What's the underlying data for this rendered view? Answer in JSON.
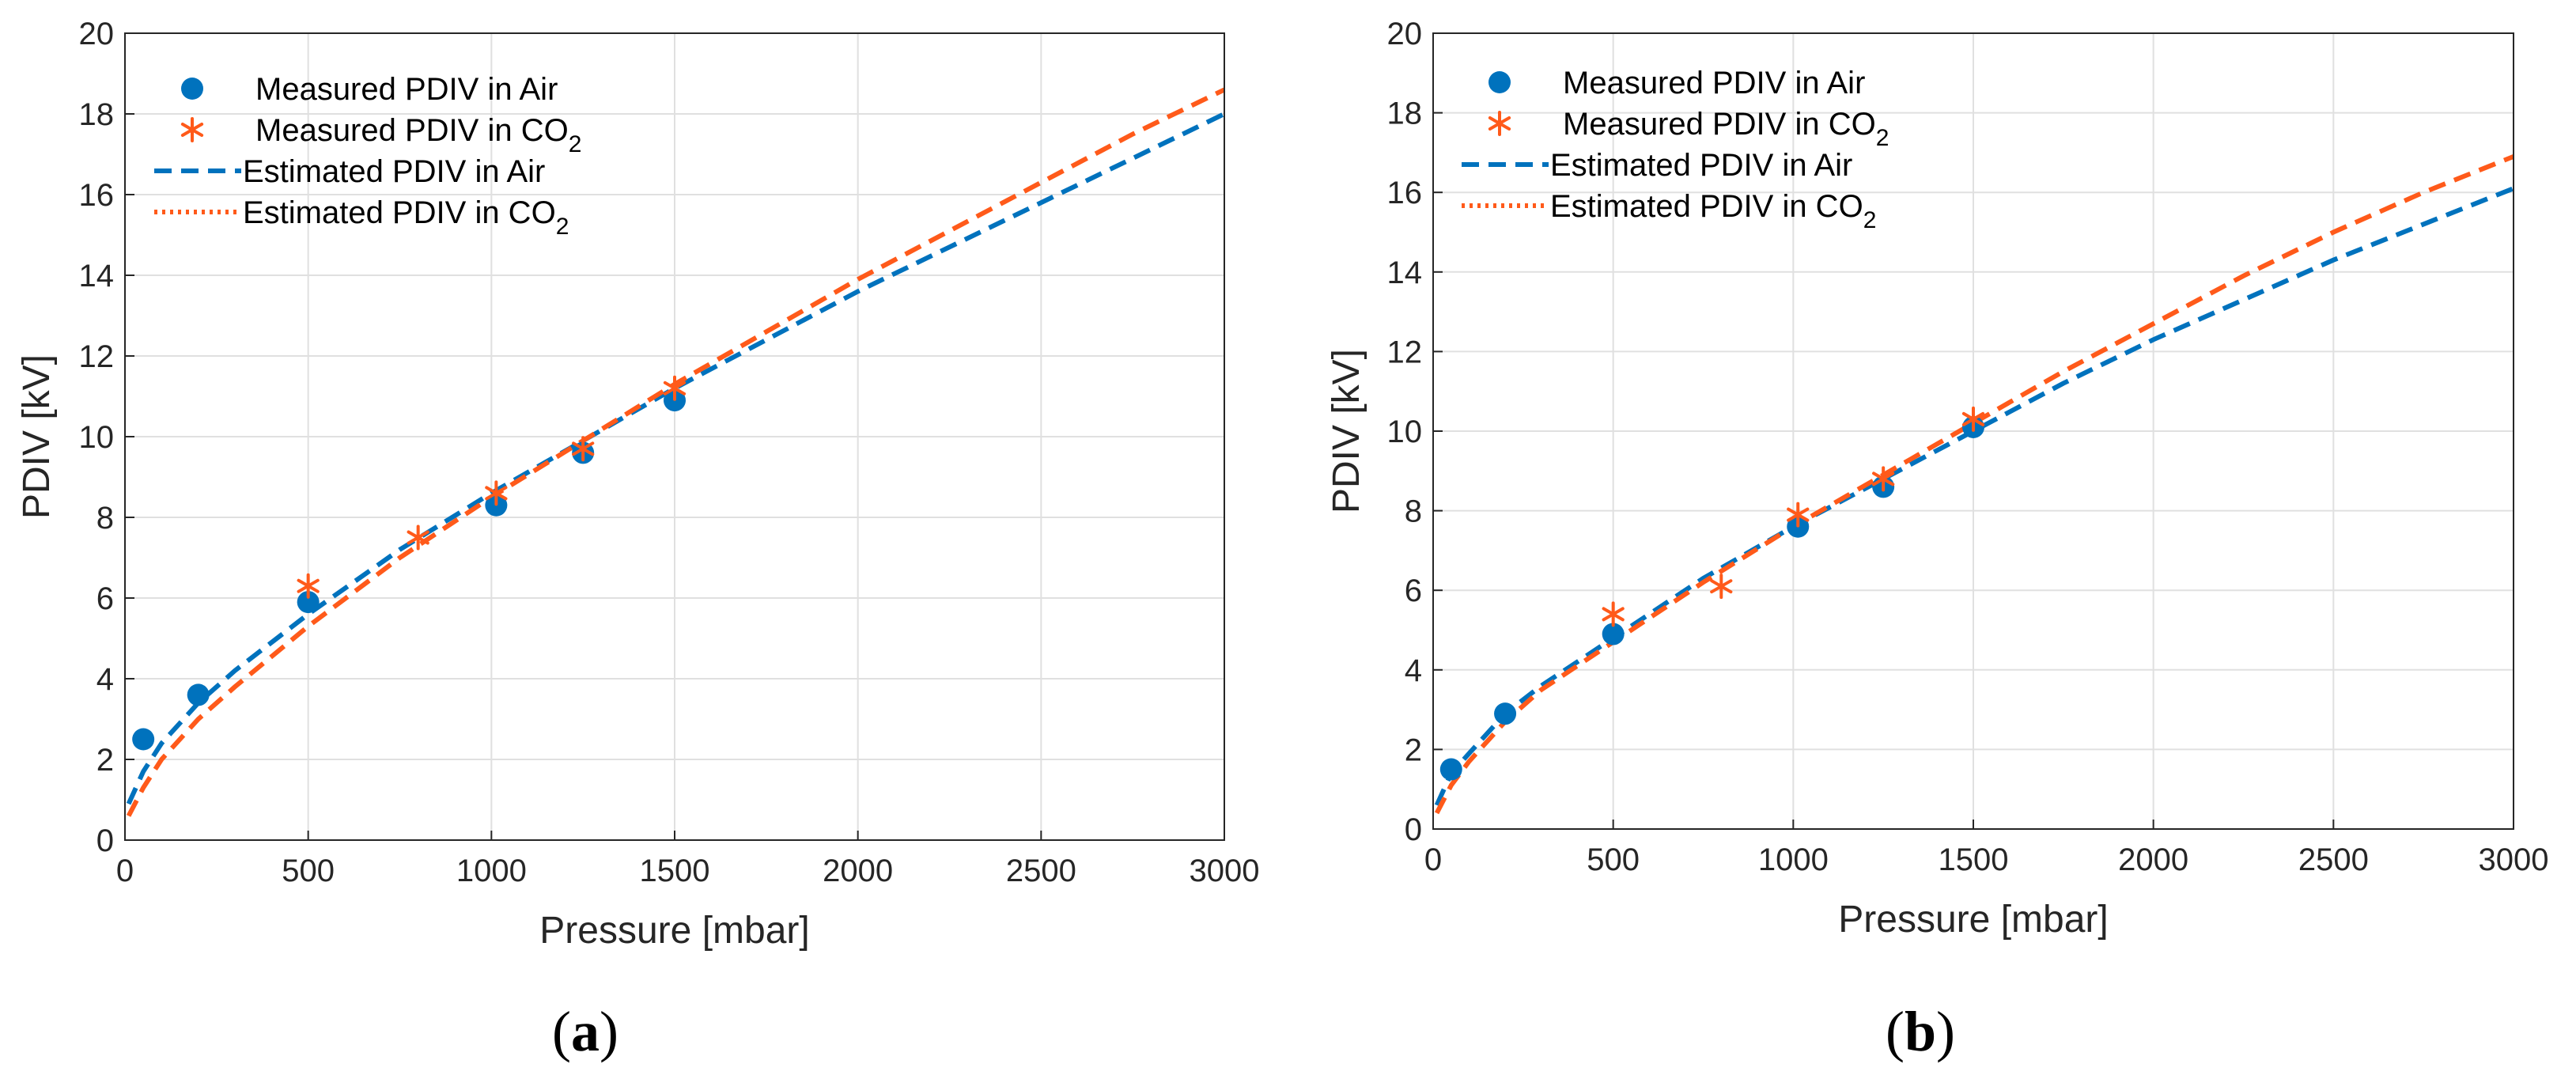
{
  "colors": {
    "air": "#0072BD",
    "co2": "#FF5A1A",
    "grid": "#e0e0e0",
    "axis": "#262626"
  },
  "captions": [
    {
      "open": "(",
      "letter": "a",
      "close": ")"
    },
    {
      "open": "(",
      "letter": "b",
      "close": ")"
    }
  ],
  "chart_data": [
    {
      "type": "scatter",
      "panel": "a",
      "xlabel": "Pressure [mbar]",
      "ylabel": "PDIV [kV]",
      "xlim": [
        0,
        3000
      ],
      "ylim": [
        0,
        20
      ],
      "xticks": [
        0,
        500,
        1000,
        1500,
        2000,
        2500,
        3000
      ],
      "yticks": [
        0,
        2,
        4,
        6,
        8,
        10,
        12,
        14,
        16,
        18,
        20
      ],
      "grid": true,
      "legend_position": "top-left",
      "legend": [
        {
          "base": "Measured PDIV in Air",
          "sub": ""
        },
        {
          "base": "Measured PDIV in CO",
          "sub": "2"
        },
        {
          "base": "Estimated PDIV in Air",
          "sub": ""
        },
        {
          "base": "Estimated PDIV in CO",
          "sub": "2"
        }
      ],
      "series": [
        {
          "name": "Measured PDIV in Air",
          "kind": "markers",
          "marker": "circle",
          "x": [
            50,
            200,
            500,
            1013,
            1250,
            1500
          ],
          "y": [
            2.5,
            3.6,
            5.9,
            8.3,
            9.6,
            10.9
          ]
        },
        {
          "name": "Measured PDIV in CO2",
          "kind": "markers",
          "marker": "asterisk",
          "x": [
            500,
            800,
            1013,
            1250,
            1500
          ],
          "y": [
            6.3,
            7.5,
            8.6,
            9.7,
            11.2
          ]
        },
        {
          "name": "Estimated PDIV in Air",
          "kind": "curve",
          "dash": "dashed",
          "x": [
            10,
            50,
            100,
            200,
            300,
            500,
            750,
            1000,
            1250,
            1500,
            1750,
            2000,
            2250,
            2500,
            2750,
            3000
          ],
          "y": [
            0.9,
            1.7,
            2.4,
            3.4,
            4.2,
            5.6,
            7.2,
            8.6,
            9.9,
            11.2,
            12.4,
            13.6,
            14.7,
            15.8,
            16.9,
            18.0
          ]
        },
        {
          "name": "Estimated PDIV in CO2",
          "kind": "curve",
          "dash": "dashed",
          "x": [
            10,
            50,
            100,
            200,
            300,
            500,
            750,
            1000,
            1250,
            1500,
            1750,
            2000,
            2250,
            2500,
            2750,
            3000
          ],
          "y": [
            0.6,
            1.3,
            2.0,
            3.0,
            3.8,
            5.3,
            7.0,
            8.5,
            9.9,
            11.3,
            12.6,
            13.9,
            15.1,
            16.3,
            17.5,
            18.6
          ]
        }
      ]
    },
    {
      "type": "scatter",
      "panel": "b",
      "xlabel": "Pressure [mbar]",
      "ylabel": "PDIV [kV]",
      "xlim": [
        0,
        3000
      ],
      "ylim": [
        0,
        20
      ],
      "xticks": [
        0,
        500,
        1000,
        1500,
        2000,
        2500,
        3000
      ],
      "yticks": [
        0,
        2,
        4,
        6,
        8,
        10,
        12,
        14,
        16,
        18,
        20
      ],
      "grid": true,
      "legend_position": "top-left",
      "legend": [
        {
          "base": "Measured PDIV in Air",
          "sub": ""
        },
        {
          "base": "Measured PDIV in CO",
          "sub": "2"
        },
        {
          "base": "Estimated PDIV in Air",
          "sub": ""
        },
        {
          "base": "Estimated PDIV in CO",
          "sub": "2"
        }
      ],
      "series": [
        {
          "name": "Measured PDIV in Air",
          "kind": "markers",
          "marker": "circle",
          "x": [
            50,
            200,
            500,
            1013,
            1250,
            1500
          ],
          "y": [
            1.5,
            2.9,
            4.9,
            7.6,
            8.6,
            10.1
          ]
        },
        {
          "name": "Measured PDIV in CO2",
          "kind": "markers",
          "marker": "asterisk",
          "x": [
            500,
            800,
            1013,
            1250,
            1500
          ],
          "y": [
            5.4,
            6.1,
            7.9,
            8.8,
            10.3
          ]
        },
        {
          "name": "Estimated PDIV in Air",
          "kind": "curve",
          "dash": "dashed",
          "x": [
            10,
            50,
            100,
            200,
            300,
            500,
            750,
            1000,
            1250,
            1500,
            1750,
            2000,
            2250,
            2500,
            2750,
            3000
          ],
          "y": [
            0.6,
            1.4,
            1.9,
            2.9,
            3.6,
            4.8,
            6.3,
            7.6,
            8.8,
            10.0,
            11.2,
            12.3,
            13.3,
            14.3,
            15.2,
            16.1
          ]
        },
        {
          "name": "Estimated PDIV in CO2",
          "kind": "curve",
          "dash": "dashed",
          "x": [
            10,
            50,
            100,
            200,
            300,
            500,
            750,
            1000,
            1250,
            1500,
            1750,
            2000,
            2250,
            2500,
            2750,
            3000
          ],
          "y": [
            0.4,
            1.1,
            1.7,
            2.7,
            3.5,
            4.7,
            6.2,
            7.6,
            8.9,
            10.2,
            11.5,
            12.7,
            13.9,
            15.0,
            16.0,
            16.9
          ]
        }
      ]
    }
  ]
}
